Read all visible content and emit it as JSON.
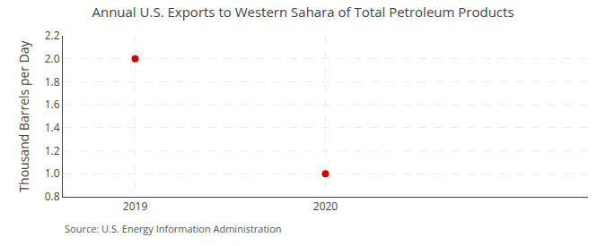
{
  "chart_data": {
    "type": "scatter",
    "title": "Annual U.S. Exports to Western Sahara of Total Petroleum Products",
    "y_label": "Thousand Barrels per Day",
    "annotations": [
      "Source: U.S. Energy Information Administration"
    ],
    "x": [
      2019,
      2020
    ],
    "values": [
      2.0,
      1.0
    ],
    "color": "#cc0000",
    "marker": "circle",
    "xlim": [
      2018.62,
      2021.38
    ],
    "xticks": [
      2019,
      2020
    ],
    "ylim": [
      0.8,
      2.2
    ],
    "yticks": [
      0.8,
      {
        "value": 1.0,
        "label": "1.0"
      },
      1.2,
      1.4,
      1.6,
      1.8,
      {
        "value": 2.0,
        "label": "2.0"
      },
      2.2
    ],
    "grid": true
  }
}
